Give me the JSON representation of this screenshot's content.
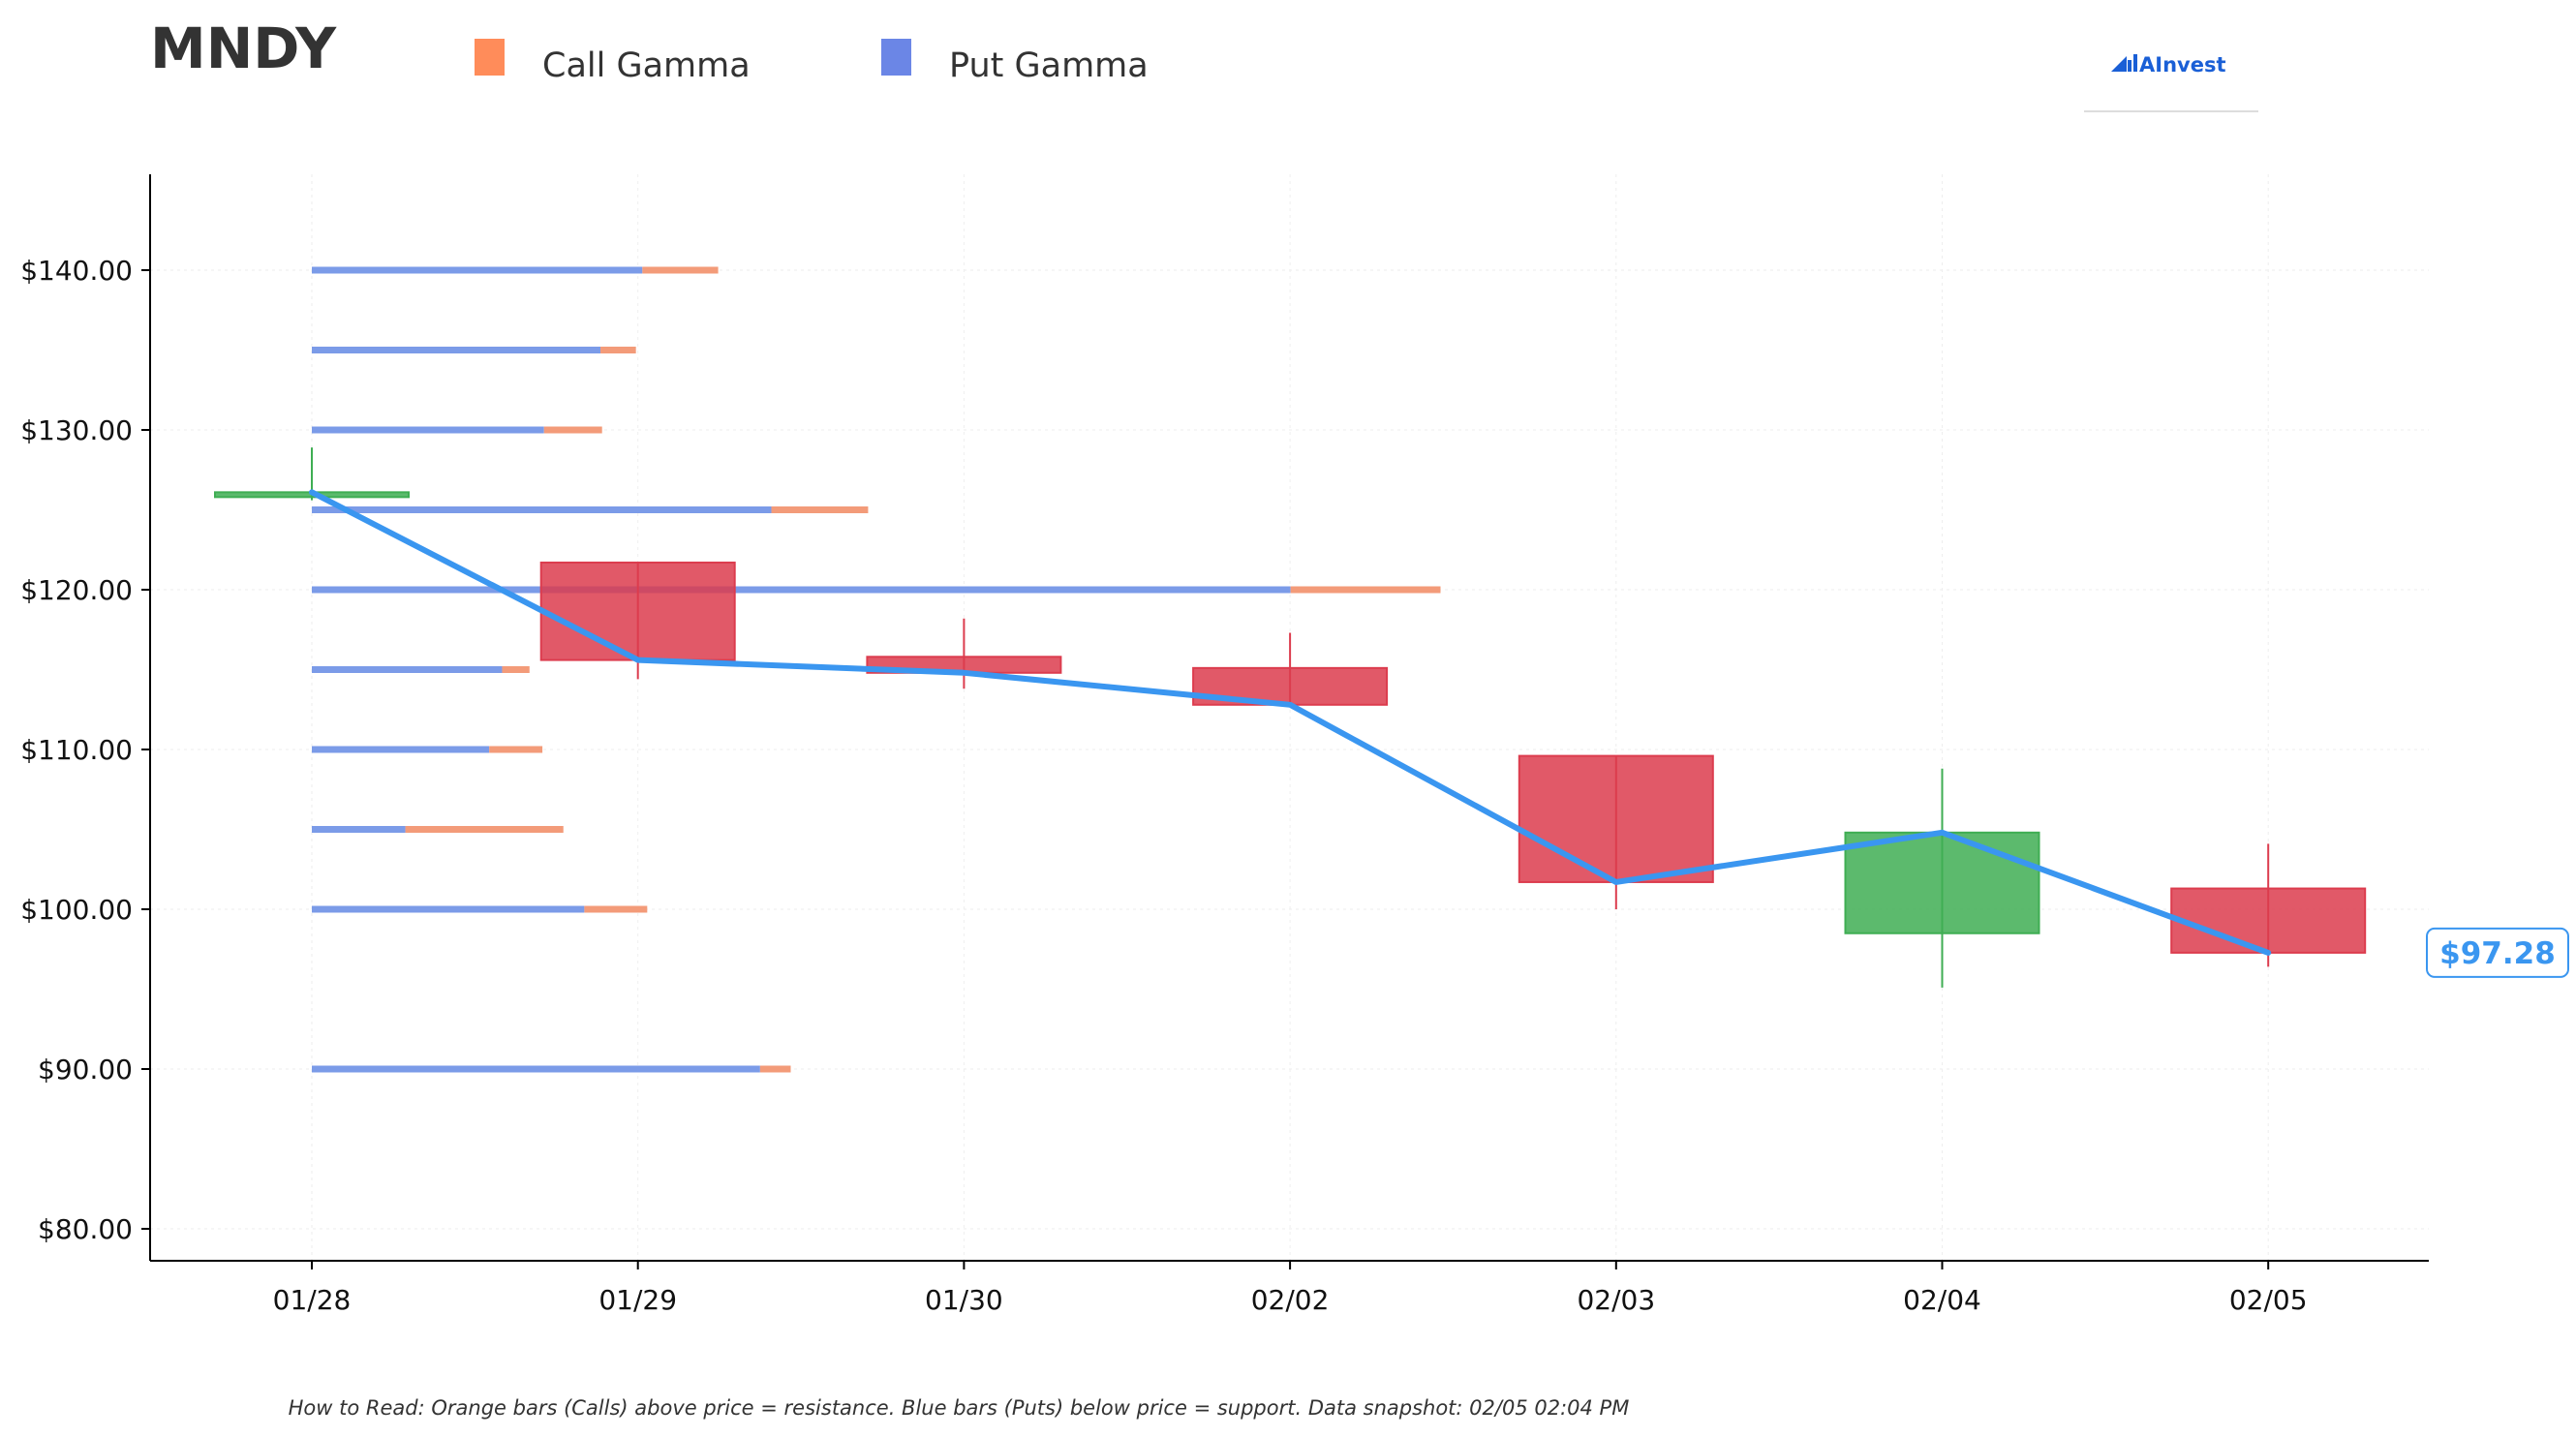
{
  "chart_data": {
    "type": "candlestick",
    "title": "MNDY",
    "legend": {
      "placement": "top",
      "items": [
        {
          "name": "Call Gamma",
          "color": "#ff8c5a"
        },
        {
          "name": "Put Gamma",
          "color": "#6b86e6"
        }
      ]
    },
    "brand": "AInvest",
    "categories": [
      "01/28",
      "01/29",
      "01/30",
      "02/02",
      "02/03",
      "02/04",
      "02/05"
    ],
    "ylim": [
      78,
      146
    ],
    "yticks": [
      80,
      90,
      100,
      110,
      120,
      130,
      140
    ],
    "ytick_labels": [
      "$80.00",
      "$90.00",
      "$100.00",
      "$110.00",
      "$120.00",
      "$130.00",
      "$140.00"
    ],
    "grid": true,
    "candles": [
      {
        "date": "01/28",
        "open": 126.1,
        "high": 128.9,
        "low": 125.6,
        "close": 126.1,
        "direction": "up"
      },
      {
        "date": "01/29",
        "open": 121.7,
        "high": 121.7,
        "low": 114.4,
        "close": 115.6,
        "direction": "down"
      },
      {
        "date": "01/30",
        "open": 115.8,
        "high": 118.2,
        "low": 113.8,
        "close": 114.8,
        "direction": "down"
      },
      {
        "date": "02/02",
        "open": 115.1,
        "high": 117.3,
        "low": 112.7,
        "close": 112.8,
        "direction": "down"
      },
      {
        "date": "02/03",
        "open": 109.6,
        "high": 109.6,
        "low": 100.0,
        "close": 101.7,
        "direction": "down"
      },
      {
        "date": "02/04",
        "open": 98.5,
        "high": 108.8,
        "low": 95.1,
        "close": 104.8,
        "direction": "up"
      },
      {
        "date": "02/05",
        "open": 101.3,
        "high": 104.1,
        "low": 96.4,
        "close": 97.28,
        "direction": "down"
      }
    ],
    "close_line": {
      "color": "#3a96f0",
      "values": [
        126.1,
        115.6,
        114.8,
        112.8,
        101.7,
        104.8,
        97.28
      ]
    },
    "gamma_levels": [
      {
        "strike": 140,
        "put": 2.05,
        "call": 0.47
      },
      {
        "strike": 135,
        "put": 1.79,
        "call": 0.22
      },
      {
        "strike": 130,
        "put": 1.44,
        "call": 0.36
      },
      {
        "strike": 125,
        "put": 2.85,
        "call": 0.6
      },
      {
        "strike": 120,
        "put": 6.07,
        "call": 0.93
      },
      {
        "strike": 115,
        "put": 1.18,
        "call": 0.17
      },
      {
        "strike": 110,
        "put": 1.1,
        "call": 0.33
      },
      {
        "strike": 105,
        "put": 0.58,
        "call": 0.98
      },
      {
        "strike": 100,
        "put": 1.69,
        "call": 0.39
      },
      {
        "strike": 90,
        "put": 2.78,
        "call": 0.19
      }
    ],
    "colors": {
      "up": "#3fae53",
      "down": "#dc3c4e",
      "call": "#f39b79",
      "put": "#7b9be8",
      "line": "#3a96f0"
    },
    "last_price_label": "$97.28",
    "footnote": "How to Read: Orange bars (Calls) above price = resistance. Blue bars (Puts) below price = support. Data snapshot: 02/05 02:04 PM"
  }
}
